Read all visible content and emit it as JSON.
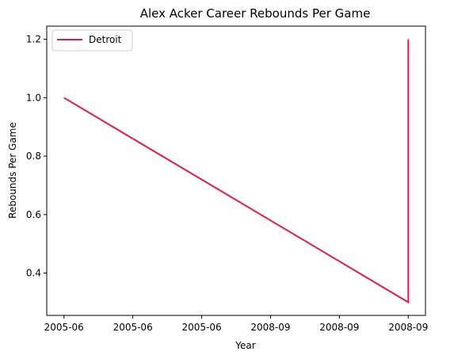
{
  "chart_data": {
    "type": "line",
    "title": "Alex Acker Career Rebounds Per Game",
    "xlabel": "Year",
    "ylabel": "Rebounds Per Game",
    "x_tick_labels": [
      "2005-06",
      "2005-06",
      "2005-06",
      "2008-09",
      "2008-09",
      "2008-09"
    ],
    "xlim": [
      -0.125,
      2.625
    ],
    "ylim": [
      0.255,
      1.245
    ],
    "y_ticks": [
      0.4,
      0.6,
      0.8,
      1.0,
      1.2
    ],
    "y_tick_labels": [
      "0.4",
      "0.6",
      "0.8",
      "1.0",
      "1.2"
    ],
    "grid": false,
    "legend": {
      "position": "top-left"
    },
    "series": [
      {
        "name": "Detroit",
        "color": "#e6194b",
        "points": [
          {
            "x": 0,
            "y": 1.0
          },
          {
            "x": 2.5,
            "y": 0.3
          },
          {
            "x": 2.5,
            "y": 1.2
          }
        ]
      }
    ]
  }
}
